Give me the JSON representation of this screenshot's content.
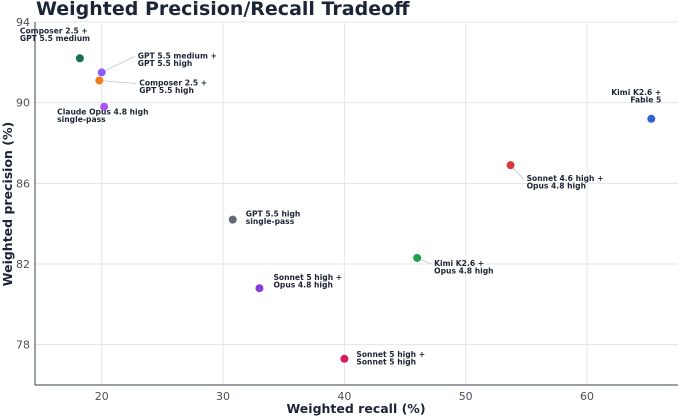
{
  "chart_data": {
    "type": "scatter",
    "title": "Weighted Precision/Recall Tradeoff",
    "xlabel": "Weighted recall (%)",
    "ylabel": "Weighted precision (%)",
    "xlim": [
      14.5,
      67.5
    ],
    "ylim": [
      76.0,
      94.0
    ],
    "xticks": [
      20,
      30,
      40,
      50,
      60
    ],
    "yticks": [
      78,
      82,
      86,
      90,
      94
    ],
    "grid": true,
    "points": [
      {
        "label": [
          "Composer 2.5 +",
          "GPT 5.5 medium"
        ],
        "x": 18.2,
        "y": 92.2,
        "color": "#1a6e52"
      },
      {
        "label": [
          "GPT 5.5 medium +",
          "GPT 5.5 high"
        ],
        "x": 20.0,
        "y": 91.5,
        "color": "#8b5cf6"
      },
      {
        "label": [
          "Composer 2.5 +",
          "GPT 5.5 high"
        ],
        "x": 19.8,
        "y": 91.1,
        "color": "#f07d1a"
      },
      {
        "label": [
          "Claude Opus 4.8 high",
          "single-pass"
        ],
        "x": 20.2,
        "y": 89.8,
        "color": "#a855f7"
      },
      {
        "label": [
          "Kimi K2.6 +",
          "Fable 5"
        ],
        "x": 65.3,
        "y": 89.2,
        "color": "#2f62d6"
      },
      {
        "label": [
          "Sonnet 4.6 high +",
          "Opus 4.8 high"
        ],
        "x": 53.7,
        "y": 86.9,
        "color": "#d73a3a"
      },
      {
        "label": [
          "GPT 5.5 high",
          "single-pass"
        ],
        "x": 30.8,
        "y": 84.2,
        "color": "#646b75"
      },
      {
        "label": [
          "Kimi K2.6 +",
          "Opus 4.8 high"
        ],
        "x": 46.0,
        "y": 82.3,
        "color": "#22a04b"
      },
      {
        "label": [
          "Sonnet 5 high +",
          "Opus 4.8 high"
        ],
        "x": 33.0,
        "y": 80.8,
        "color": "#8a3ad9"
      },
      {
        "label": [
          "Sonnet 5 high +",
          "Sonnet 5 high"
        ],
        "x": 40.0,
        "y": 77.3,
        "color": "#d81b60"
      }
    ]
  }
}
